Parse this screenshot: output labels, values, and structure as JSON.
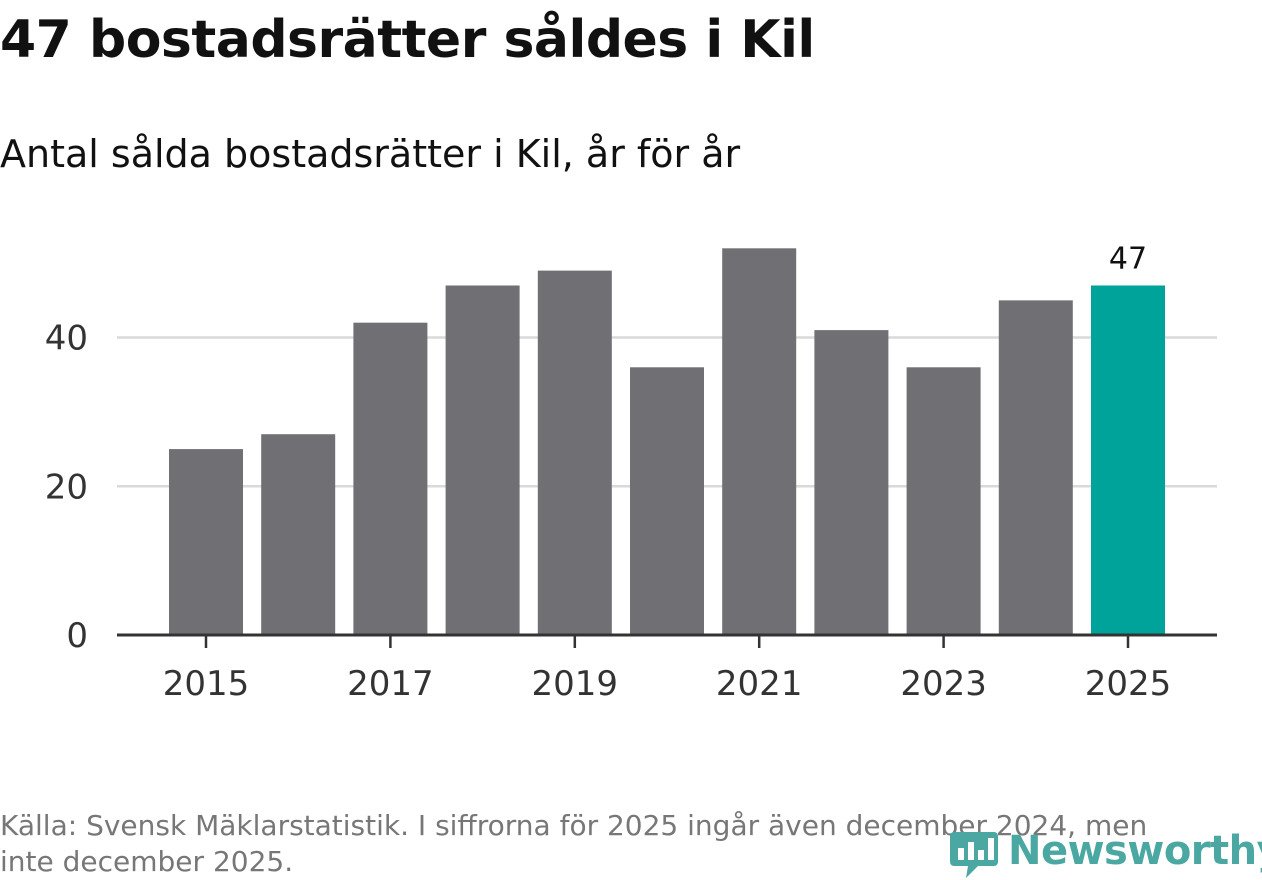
{
  "title": "47 bostadsrätter såldes i Kil",
  "subtitle": "Antal sålda bostadsrätter i Kil, år för år",
  "source": "Källa: Svensk Mäklarstatistik. I siffrorna för 2025 ingår även december 2024, men inte december 2025.",
  "brand": "Newsworthy",
  "colors": {
    "bar": "#706f74",
    "highlight": "#00a39a",
    "grid": "#d9d9d9",
    "axis": "#333333",
    "brand": "#4aa7a2"
  },
  "chart_data": {
    "type": "bar",
    "title": "47 bostadsrätter såldes i Kil",
    "subtitle": "Antal sålda bostadsrätter i Kil, år för år",
    "categories": [
      "2015",
      "2016",
      "2017",
      "2018",
      "2019",
      "2020",
      "2021",
      "2022",
      "2023",
      "2024",
      "2025"
    ],
    "values": [
      25,
      27,
      42,
      47,
      49,
      36,
      52,
      41,
      36,
      45,
      47
    ],
    "highlight_index": 10,
    "data_labels": [
      {
        "index": 10,
        "text": "47"
      }
    ],
    "x_tick_labels": [
      "2015",
      "2017",
      "2019",
      "2021",
      "2023",
      "2025"
    ],
    "y_ticks": [
      0,
      20,
      40
    ],
    "ylim": [
      0,
      55
    ],
    "xlabel": "",
    "ylabel": "",
    "grid": true
  }
}
